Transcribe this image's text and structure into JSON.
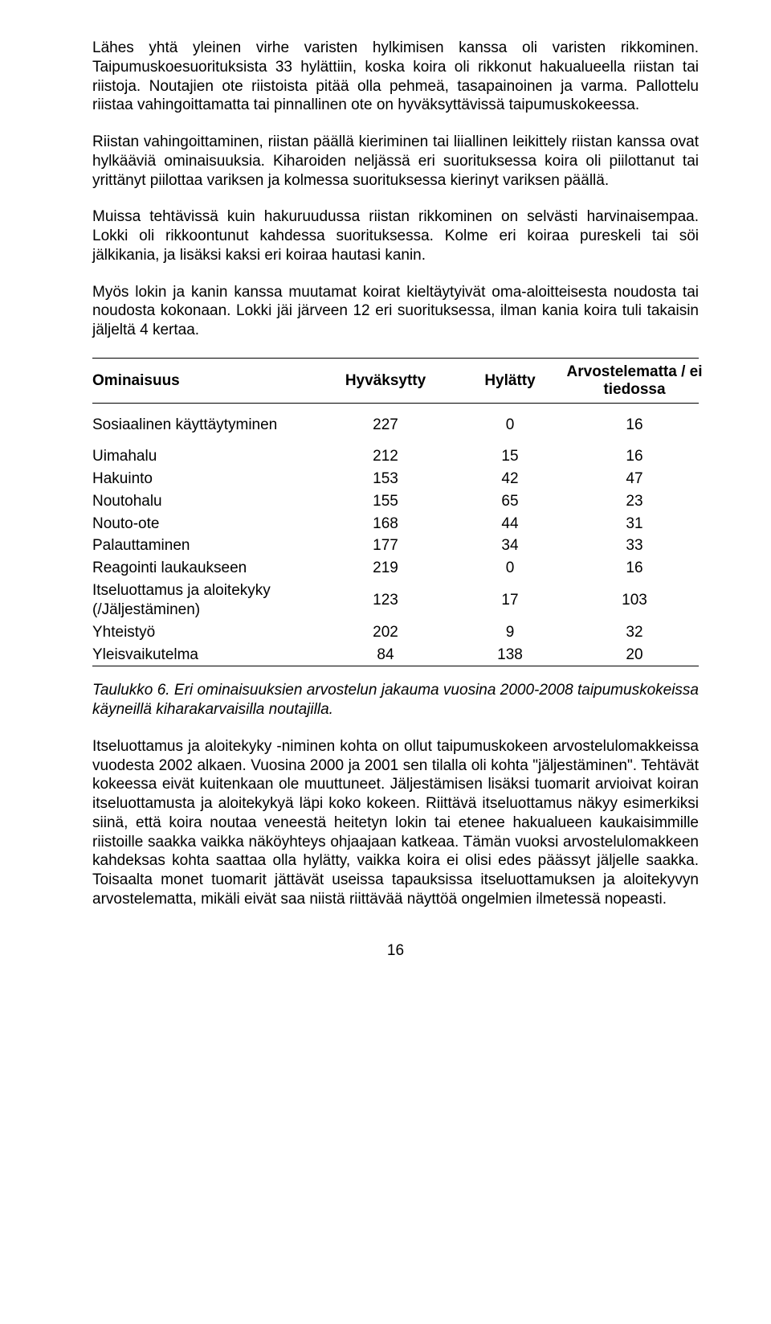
{
  "paragraphs": {
    "p1": "Lähes yhtä yleinen virhe varisten hylkimisen kanssa oli varisten rikkominen. Taipumuskoesuorituksista 33 hylättiin, koska koira oli rikkonut hakualueella riistan tai riistoja. Noutajien ote riistoista pitää olla pehmeä, tasapainoinen ja varma. Pallottelu riistaa vahingoittamatta tai pinnallinen ote on hyväksyttävissä taipumuskokeessa.",
    "p2": "Riistan vahingoittaminen, riistan päällä kieriminen tai liiallinen leikittely riistan kanssa ovat hylkääviä ominaisuuksia. Kiharoiden neljässä eri suorituksessa koira oli piilottanut tai yrittänyt piilottaa variksen ja kolmessa suorituksessa kierinyt variksen päällä.",
    "p3": "Muissa tehtävissä kuin hakuruudussa riistan rikkominen on selvästi harvinaisempaa. Lokki oli rikkoontunut kahdessa suorituksessa. Kolme eri koiraa pureskeli tai söi jälkikania, ja lisäksi kaksi eri koiraa hautasi kanin.",
    "p4": "Myös lokin ja kanin kanssa muutamat koirat kieltäytyivät oma-aloitteisesta noudosta tai noudosta kokonaan. Lokki jäi järveen 12 eri suorituksessa, ilman kania koira tuli takaisin jäljeltä 4 kertaa.",
    "p5": "Itseluottamus ja aloitekyky -niminen kohta on ollut taipumuskokeen arvostelulomakkeissa vuodesta 2002 alkaen. Vuosina 2000 ja 2001 sen tilalla oli kohta \"jäljestäminen\". Tehtävät kokeessa eivät kuitenkaan ole muuttuneet. Jäljestämisen lisäksi tuomarit arvioivat koiran itseluottamusta ja aloitekykyä läpi koko kokeen. Riittävä itseluottamus näkyy esimerkiksi siinä, että koira noutaa veneestä heitetyn lokin tai etenee hakualueen kaukaisimmille riistoille saakka vaikka näköyhteys ohjaajaan katkeaa. Tämän vuoksi arvostelulomakkeen kahdeksas kohta saattaa olla hylätty, vaikka koira ei olisi edes päässyt jäljelle saakka. Toisaalta monet tuomarit jättävät useissa tapauksissa itseluottamuksen ja aloitekyvyn arvostelematta, mikäli eivät saa niistä riittävää näyttöä ongelmien ilmetessä nopeasti."
  },
  "table": {
    "headers": {
      "label": "Ominaisuus",
      "colA": "Hyväksytty",
      "colB": "Hylätty",
      "colC": "Arvostelematta / ei tiedossa"
    },
    "rows": [
      {
        "label": "Sosiaalinen käyttäytyminen",
        "a": "227",
        "b": "0",
        "c": "16",
        "twoline": true
      },
      {
        "label": "Uimahalu",
        "a": "212",
        "b": "15",
        "c": "16"
      },
      {
        "label": "Hakuinto",
        "a": "153",
        "b": "42",
        "c": "47"
      },
      {
        "label": "Noutohalu",
        "a": "155",
        "b": "65",
        "c": "23"
      },
      {
        "label": "Nouto-ote",
        "a": "168",
        "b": "44",
        "c": "31"
      },
      {
        "label": "Palauttaminen",
        "a": "177",
        "b": "34",
        "c": "33"
      },
      {
        "label": "Reagointi laukaukseen",
        "a": "219",
        "b": "0",
        "c": "16"
      },
      {
        "label": "Itseluottamus ja aloitekyky (/Jäljestäminen)",
        "a": "123",
        "b": "17",
        "c": "103",
        "twoline": true
      },
      {
        "label": "Yhteistyö",
        "a": "202",
        "b": "9",
        "c": "32"
      },
      {
        "label": "Yleisvaikutelma",
        "a": "84",
        "b": "138",
        "c": "20"
      }
    ]
  },
  "caption": "Taulukko 6. Eri ominaisuuksien arvostelun jakauma vuosina 2000-2008 taipumuskokeissa käyneillä kiharakarvaisilla noutajilla.",
  "pagenum": "16"
}
